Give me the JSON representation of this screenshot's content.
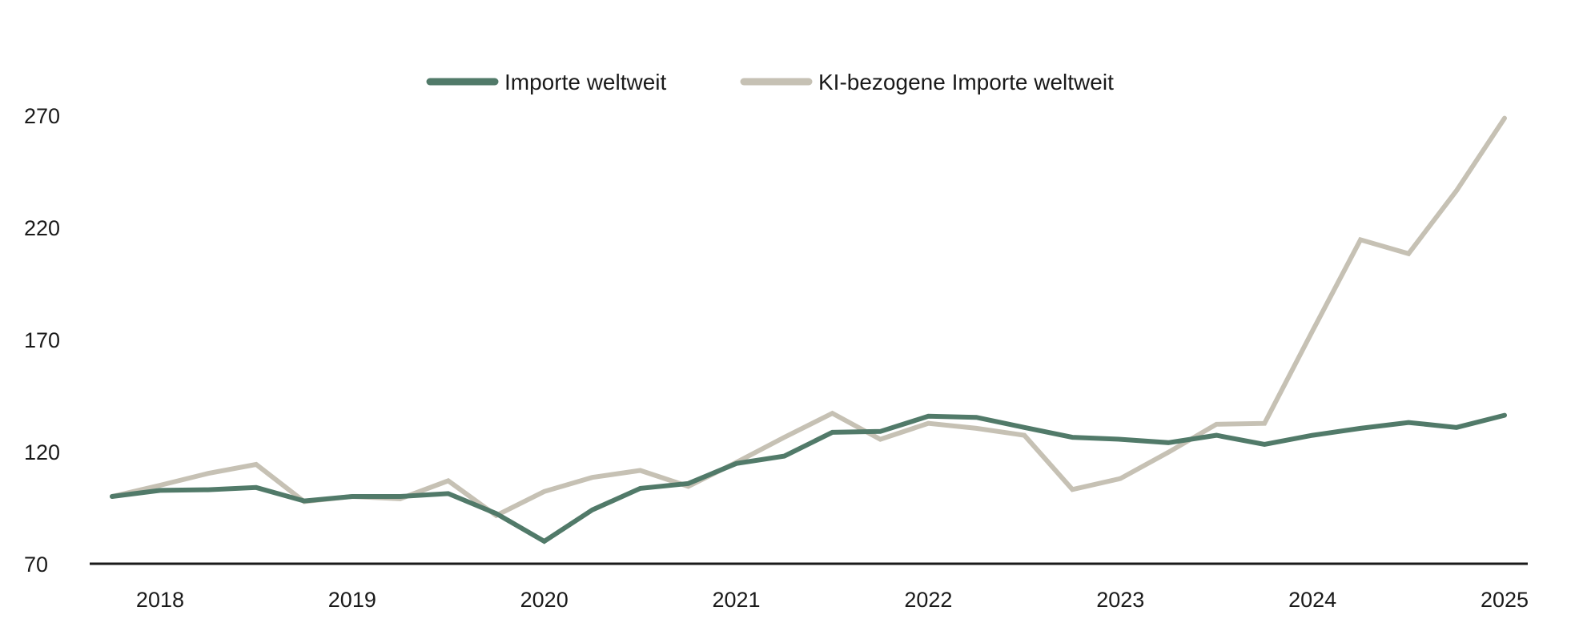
{
  "chart_data": {
    "type": "line",
    "title": "",
    "xlabel": "",
    "ylabel": "",
    "ylim": [
      70,
      270
    ],
    "yticks": [
      70,
      120,
      170,
      220,
      270
    ],
    "x_tick_labels": [
      "2018",
      "2019",
      "2020",
      "2021",
      "2022",
      "2023",
      "2024",
      "2025"
    ],
    "x": [
      "2017-Q4",
      "2018-Q1",
      "2018-Q2",
      "2018-Q3",
      "2018-Q4",
      "2019-Q1",
      "2019-Q2",
      "2019-Q3",
      "2019-Q4",
      "2020-Q1",
      "2020-Q2",
      "2020-Q3",
      "2020-Q4",
      "2021-Q1",
      "2021-Q2",
      "2021-Q3",
      "2021-Q4",
      "2022-Q1",
      "2022-Q2",
      "2022-Q3",
      "2022-Q4",
      "2023-Q1",
      "2023-Q2",
      "2023-Q3",
      "2023-Q4",
      "2024-Q1",
      "2024-Q2",
      "2024-Q3",
      "2024-Q4",
      "2025-Q1"
    ],
    "grid": false,
    "legend_position": "top-center",
    "series": [
      {
        "name": "Importe weltweit",
        "color": "#517a69",
        "values": [
          100,
          102.7,
          103,
          104,
          98,
          100,
          100,
          101.3,
          92.4,
          80,
          94,
          103.6,
          105.8,
          114.7,
          118,
          128.6,
          129,
          135.8,
          135.3,
          130.8,
          126.4,
          125.5,
          124,
          127.3,
          123.2,
          127.3,
          130.4,
          133,
          130.8,
          136.2
        ]
      },
      {
        "name": "KI-bezogene Importe weltweit",
        "color": "#c6c1b4",
        "values": [
          100,
          105,
          110.3,
          114.3,
          97.7,
          100,
          99,
          107,
          91.5,
          102.2,
          108.5,
          111.6,
          104.5,
          115.2,
          126.4,
          137.1,
          125.5,
          132.6,
          130.4,
          127.3,
          103.1,
          108,
          119.7,
          132.2,
          132.6,
          173.8,
          214.5,
          208.3,
          236.4,
          268.7
        ]
      }
    ]
  }
}
